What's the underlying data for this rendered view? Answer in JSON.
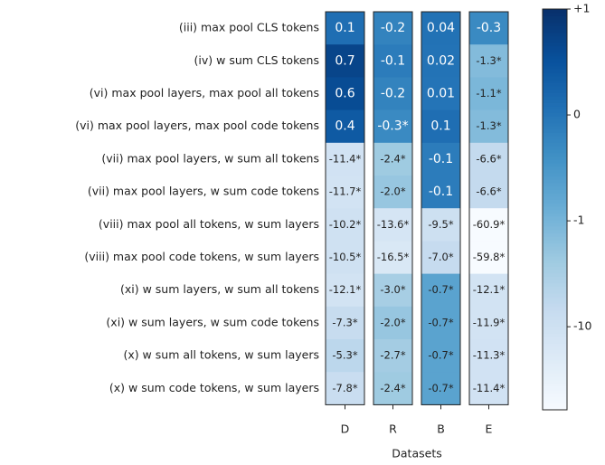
{
  "chart_data": {
    "type": "heatmap",
    "rows": [
      "(iii) max pool CLS tokens",
      "(iv) w sum CLS tokens",
      "(vi) max pool layers, max pool all tokens",
      "(vi) max pool layers, max pool code tokens",
      "(vii) max pool layers, w sum all tokens",
      "(vii) max pool layers, w sum code tokens",
      "(viii) max pool all tokens, w sum layers",
      "(viii) max pool code tokens, w sum layers",
      "(xi) w sum layers, w sum all tokens",
      "(xi) w sum layers, w sum code tokens",
      "(x) w sum all tokens, w sum layers",
      "(x) w sum code tokens, w sum layers"
    ],
    "columns": [
      "D",
      "R",
      "B",
      "E"
    ],
    "xlabel": "Datasets",
    "values": [
      [
        0.1,
        -0.2,
        0.04,
        -0.3
      ],
      [
        0.7,
        -0.1,
        0.02,
        -1.3
      ],
      [
        0.6,
        -0.2,
        0.01,
        -1.1
      ],
      [
        0.4,
        -0.3,
        0.1,
        -1.3
      ],
      [
        -11.4,
        -2.4,
        -0.1,
        -6.6
      ],
      [
        -11.7,
        -2.0,
        -0.1,
        -6.6
      ],
      [
        -10.2,
        -13.6,
        -9.5,
        -60.9
      ],
      [
        -10.5,
        -16.5,
        -7.0,
        -59.8
      ],
      [
        -12.1,
        -3.0,
        -0.7,
        -12.1
      ],
      [
        -7.3,
        -2.0,
        -0.7,
        -11.9
      ],
      [
        -5.3,
        -2.7,
        -0.7,
        -11.3
      ],
      [
        -7.8,
        -2.4,
        -0.7,
        -11.4
      ]
    ],
    "value_labels": [
      [
        "0.1",
        "-0.2",
        "0.04",
        "-0.3"
      ],
      [
        "0.7",
        "-0.1",
        "0.02",
        "-1.3*"
      ],
      [
        "0.6",
        "-0.2",
        "0.01",
        "-1.1*"
      ],
      [
        "0.4",
        "-0.3*",
        "0.1",
        "-1.3*"
      ],
      [
        "-11.4*",
        "-2.4*",
        "-0.1",
        "-6.6*"
      ],
      [
        "-11.7*",
        "-2.0*",
        "-0.1",
        "-6.6*"
      ],
      [
        "-10.2*",
        "-13.6*",
        "-9.5*",
        "-60.9*"
      ],
      [
        "-10.5*",
        "-16.5*",
        "-7.0*",
        "-59.8*"
      ],
      [
        "-12.1*",
        "-3.0*",
        "-0.7*",
        "-12.1*"
      ],
      [
        "-7.3*",
        "-2.0*",
        "-0.7*",
        "-11.9*"
      ],
      [
        "-5.3*",
        "-2.7*",
        "-0.7*",
        "-11.3*"
      ],
      [
        "-7.8*",
        "-2.4*",
        "-0.7*",
        "-11.4*"
      ]
    ],
    "colormap": "Blues",
    "colorbar": {
      "scale": "symlog",
      "linthresh": 1,
      "lim": [
        -60.9,
        1
      ],
      "ticks": [
        {
          "value": 1,
          "label": "+1"
        },
        0,
        -1,
        -10
      ]
    }
  }
}
